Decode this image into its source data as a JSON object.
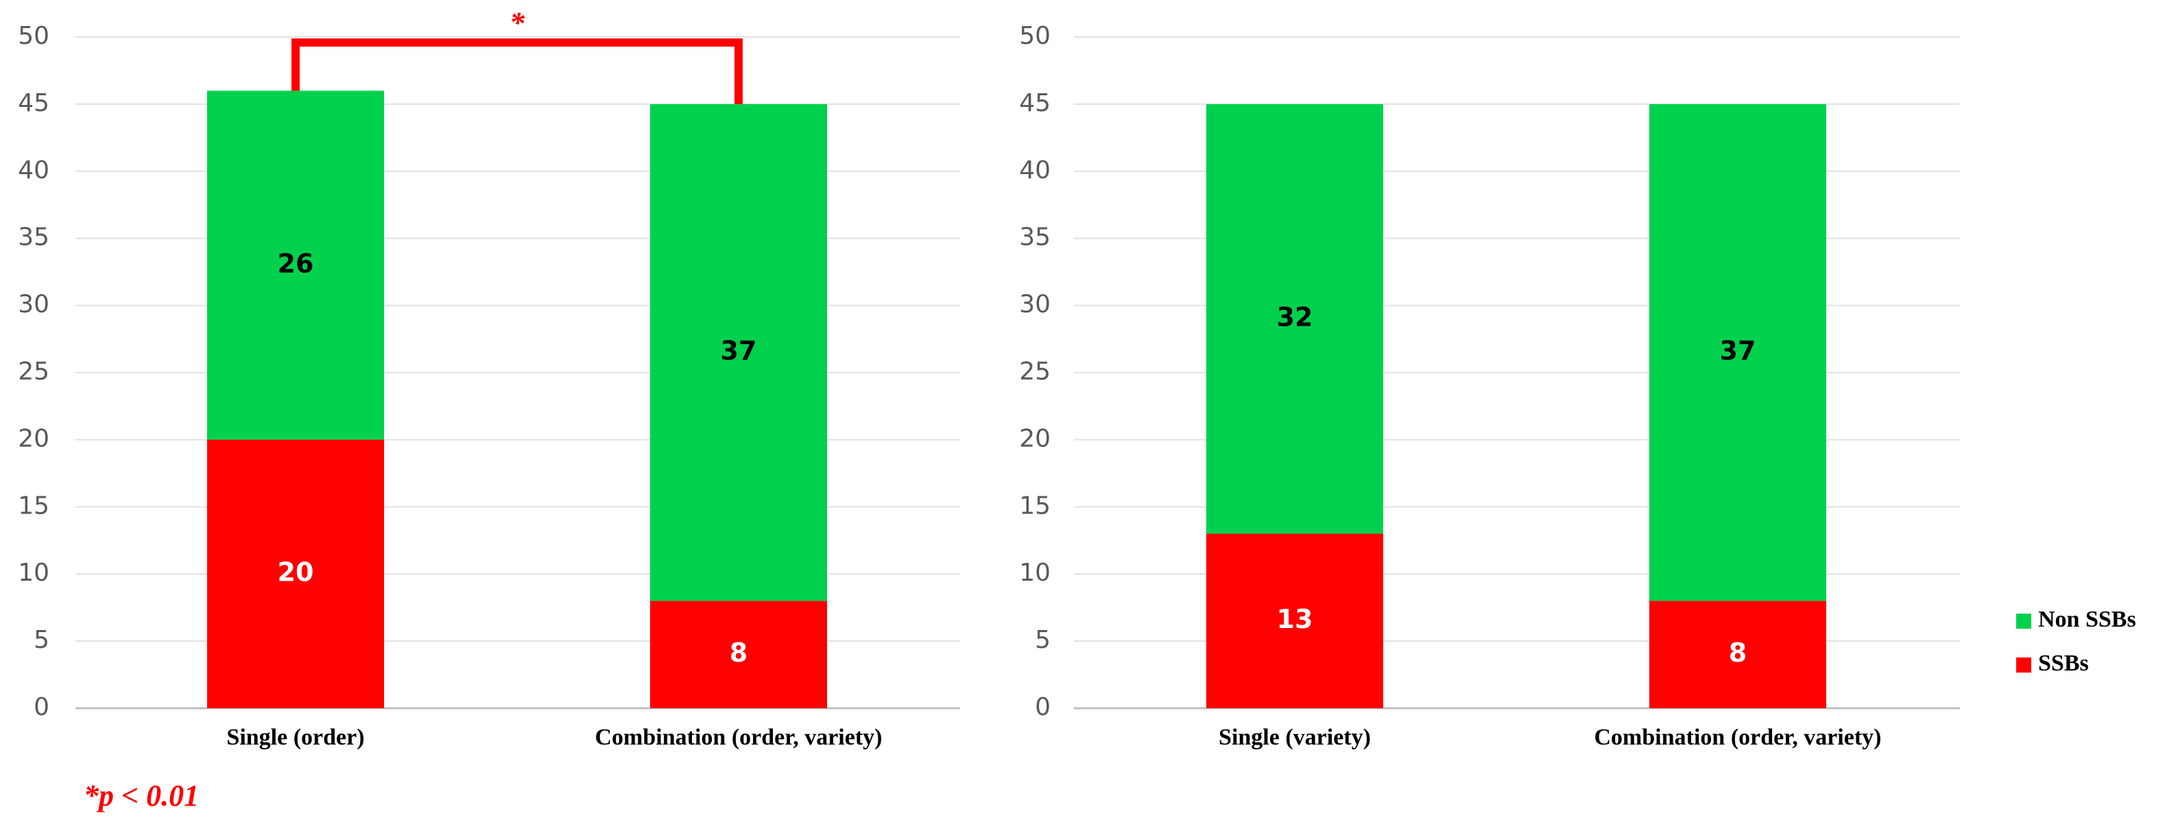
{
  "chart_data": [
    {
      "type": "bar",
      "stacked": true,
      "categories": [
        "Single (order)",
        "Combination (order, variety)"
      ],
      "series": [
        {
          "color": "#ff0000",
          "values": [
            20,
            8
          ]
        },
        {
          "color": "#00d14d",
          "values": [
            26,
            37
          ]
        }
      ],
      "ylim": [
        0,
        50
      ],
      "yticks": [
        0,
        5,
        10,
        15,
        20,
        25,
        30,
        35,
        40,
        45,
        50
      ],
      "grid": true,
      "annotations": [
        "*",
        "*p < 0.01"
      ]
    },
    {
      "type": "bar",
      "stacked": true,
      "categories": [
        "Single (variety)",
        "Combination (order, variety)"
      ],
      "series": [
        {
          "name": "SSBs",
          "color": "#ff0000",
          "values": [
            13,
            8
          ]
        },
        {
          "name": "Non SSBs",
          "color": "#00d14d",
          "values": [
            32,
            37
          ]
        }
      ],
      "ylim": [
        0,
        50
      ],
      "yticks": [
        0,
        5,
        10,
        15,
        20,
        25,
        30,
        35,
        40,
        45,
        50
      ],
      "grid": true,
      "legend": "right"
    }
  ]
}
